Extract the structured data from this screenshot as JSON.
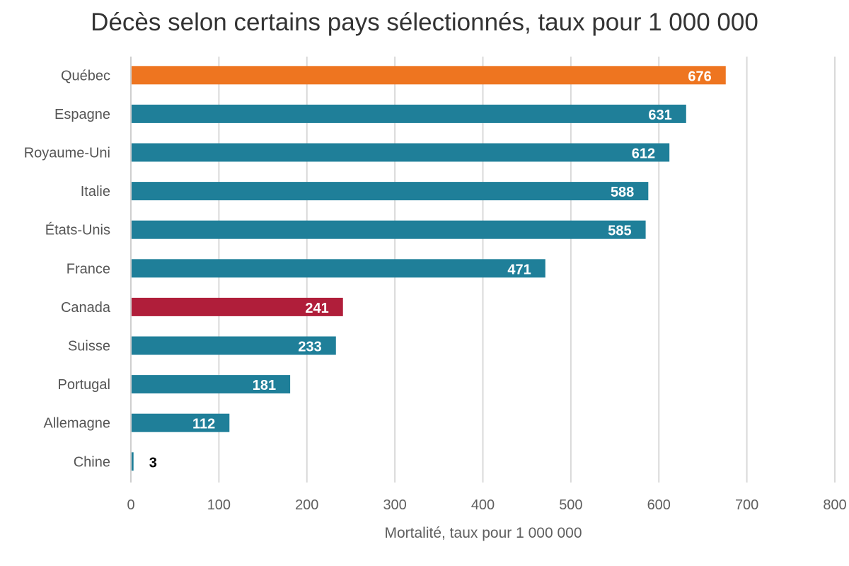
{
  "chart_data": {
    "type": "bar",
    "orientation": "horizontal",
    "title": "Décès selon certains pays sélectionnés, taux pour 1 000 000",
    "xlabel": "Mortalité, taux pour 1 000 000",
    "ylabel": "",
    "xlim": [
      0,
      800
    ],
    "xticks": [
      0,
      100,
      200,
      300,
      400,
      500,
      600,
      700,
      800
    ],
    "grid": true,
    "categories": [
      "Québec",
      "Espagne",
      "Royaume-Uni",
      "Italie",
      "États-Unis",
      "France",
      "Canada",
      "Suisse",
      "Portugal",
      "Allemagne",
      "Chine"
    ],
    "values": [
      676,
      631,
      612,
      588,
      585,
      471,
      241,
      233,
      181,
      112,
      3
    ],
    "bar_colors": [
      "#ee7520",
      "#1f7f99",
      "#1f7f99",
      "#1f7f99",
      "#1f7f99",
      "#1f7f99",
      "#b01e3a",
      "#1f7f99",
      "#1f7f99",
      "#1f7f99",
      "#1f7f99"
    ]
  },
  "colors": {
    "grid": "#d9d9d9",
    "label_inside": "#ffffff",
    "label_outside": "#000000"
  }
}
